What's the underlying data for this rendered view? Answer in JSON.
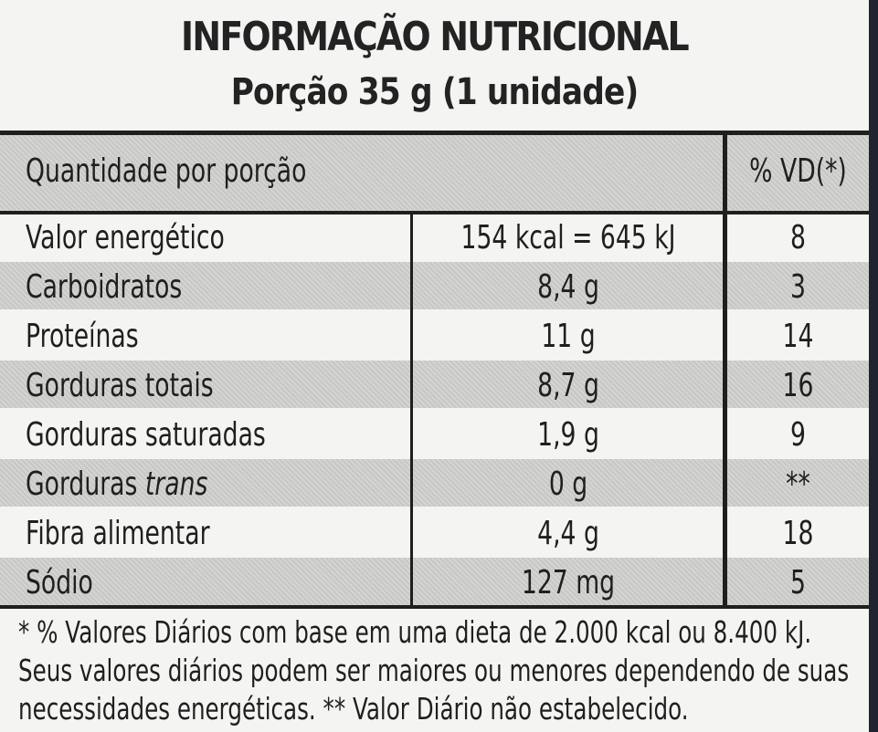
{
  "label": {
    "title": "INFORMAÇÃO NUTRICIONAL",
    "serving": "Porção 35 g (1 unidade)",
    "header": {
      "quantity_label": "Quantidade por porção",
      "dv_label": "% VD(*)"
    },
    "rows": [
      {
        "nutrient": "Valor energético",
        "amount": "154 kcal = 645 kJ",
        "dv": "8"
      },
      {
        "nutrient": "Carboidratos",
        "amount": "8,4 g",
        "dv": "3"
      },
      {
        "nutrient": "Proteínas",
        "amount": "11 g",
        "dv": "14"
      },
      {
        "nutrient": "Gorduras totais",
        "amount": "8,7 g",
        "dv": "16"
      },
      {
        "nutrient": "Gorduras saturadas",
        "amount": "1,9 g",
        "dv": "9"
      },
      {
        "nutrient_prefix": "Gorduras ",
        "nutrient_italic": "trans",
        "amount": "0 g",
        "dv": "**"
      },
      {
        "nutrient": "Fibra alimentar",
        "amount": "4,4 g",
        "dv": "18"
      },
      {
        "nutrient": "Sódio",
        "amount": "127 mg",
        "dv": "5"
      }
    ],
    "footnote": {
      "line1": "* % Valores Diários com base em uma dieta de 2.000 kcal ou 8.400 kJ.",
      "line2": "Seus valores diários podem ser maiores ou menores dependendo de suas",
      "line3": "necessidades energéticas. ** Valor Diário não estabelecido."
    }
  }
}
